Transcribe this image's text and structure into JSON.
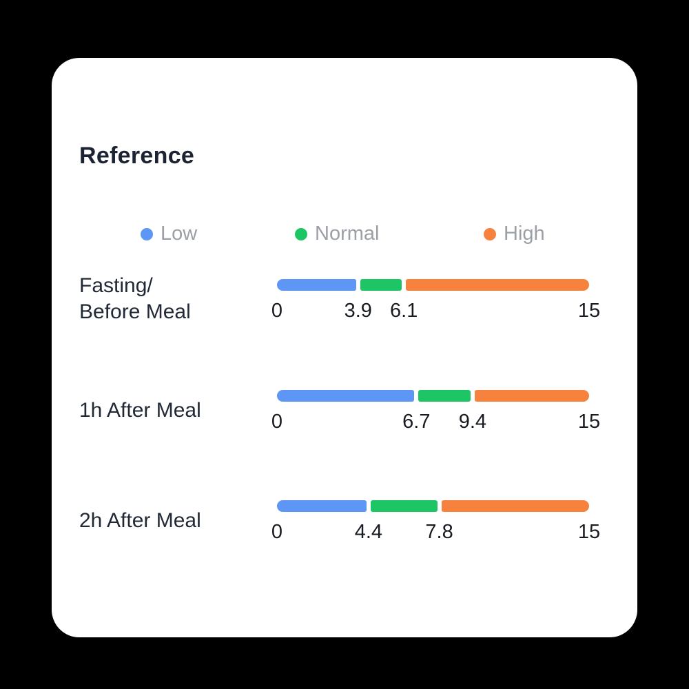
{
  "app": {
    "background_color": "#000000",
    "card_background_color": "#ffffff"
  },
  "card": {
    "title": "Reference"
  },
  "legend": {
    "items": [
      {
        "name": "low",
        "label": "Low",
        "color": "#5E96F5"
      },
      {
        "name": "normal",
        "label": "Normal",
        "color": "#1EC564"
      },
      {
        "name": "high",
        "label": "High",
        "color": "#F6823E"
      }
    ]
  },
  "chart_data": {
    "type": "bar",
    "title": "Reference",
    "legend": [
      "Low",
      "Normal",
      "High"
    ],
    "legend_position": "top",
    "axis": {
      "min": 0,
      "max": 15
    },
    "colors": {
      "low": "#5E96F5",
      "normal": "#1EC564",
      "high": "#F6823E"
    },
    "rows": [
      {
        "label": "Fasting/Before Meal",
        "label_lines": [
          "Fasting/",
          "Before Meal"
        ],
        "low_max": 3.9,
        "normal_max": 6.1,
        "segments": [
          {
            "name": "Low",
            "from": 0,
            "to": 3.9
          },
          {
            "name": "Normal",
            "from": 3.9,
            "to": 6.1
          },
          {
            "name": "High",
            "from": 6.1,
            "to": 15
          }
        ],
        "ticks": [
          "0",
          "3.9",
          "6.1",
          "15"
        ]
      },
      {
        "label": "1h After Meal",
        "label_lines": [
          "1h After Meal"
        ],
        "low_max": 6.7,
        "normal_max": 9.4,
        "segments": [
          {
            "name": "Low",
            "from": 0,
            "to": 6.7
          },
          {
            "name": "Normal",
            "from": 6.7,
            "to": 9.4
          },
          {
            "name": "High",
            "from": 9.4,
            "to": 15
          }
        ],
        "ticks": [
          "0",
          "6.7",
          "9.4",
          "15"
        ]
      },
      {
        "label": "2h After Meal",
        "label_lines": [
          "2h After Meal"
        ],
        "low_max": 4.4,
        "normal_max": 7.8,
        "segments": [
          {
            "name": "Low",
            "from": 0,
            "to": 4.4
          },
          {
            "name": "Normal",
            "from": 4.4,
            "to": 7.8
          },
          {
            "name": "High",
            "from": 7.8,
            "to": 15
          }
        ],
        "ticks": [
          "0",
          "4.4",
          "7.8",
          "15"
        ]
      }
    ]
  }
}
